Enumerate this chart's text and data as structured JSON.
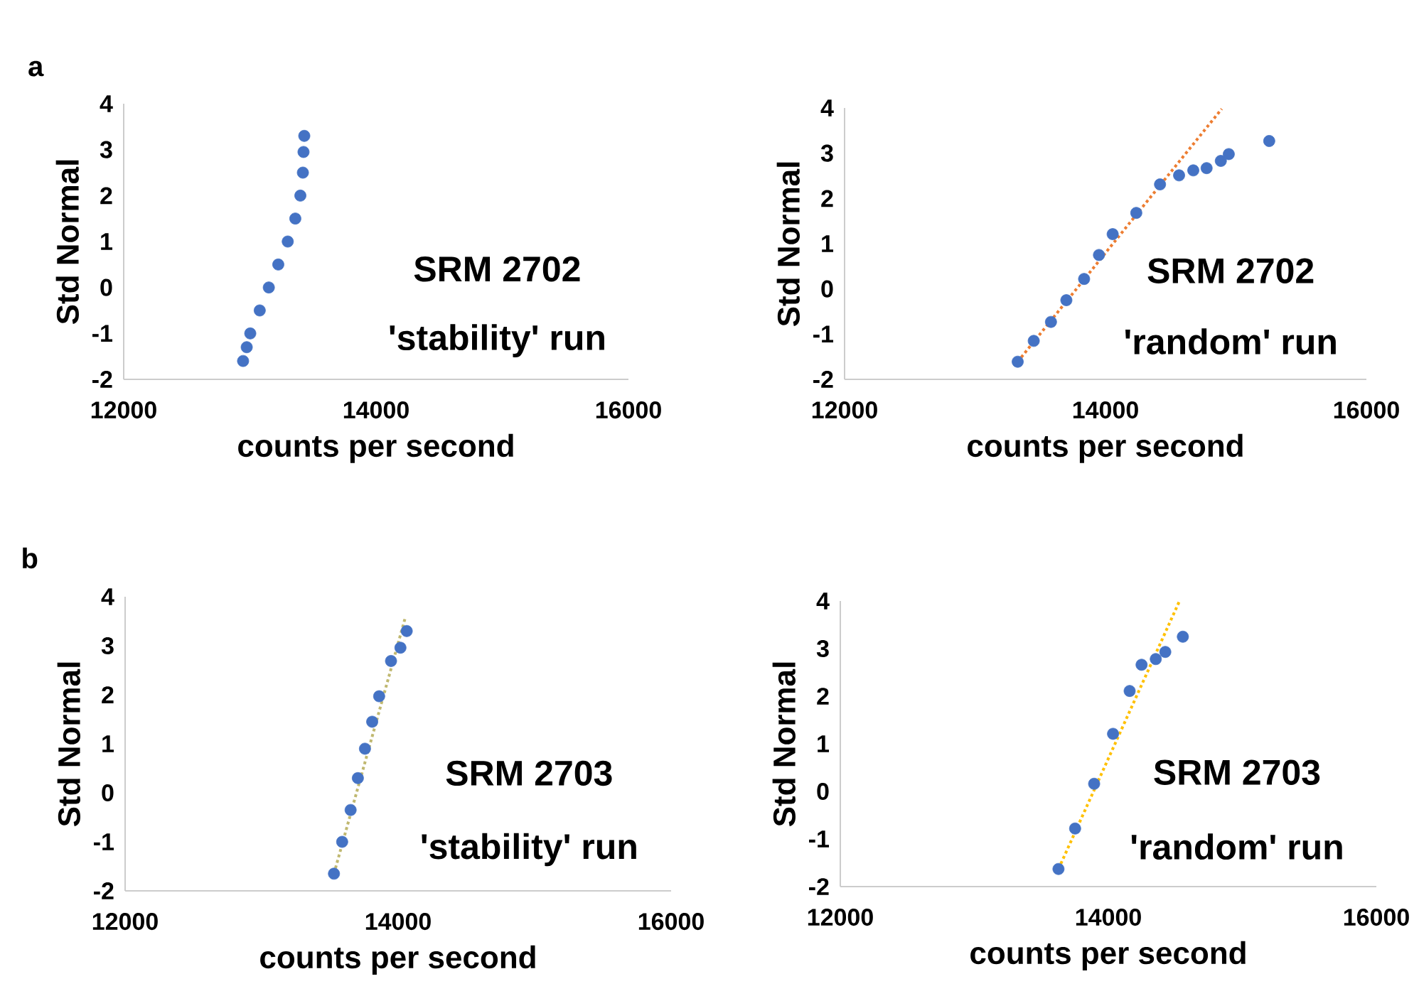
{
  "chart_data": [
    {
      "type": "scatter",
      "title": "a",
      "xlabel": "counts per second",
      "ylabel": "Std Normal",
      "xlim": [
        12000,
        16000
      ],
      "ylim": [
        -2,
        4
      ],
      "xticks": [
        12000,
        14000,
        16000
      ],
      "yticks": [
        -2,
        -1,
        0,
        1,
        2,
        3,
        4
      ],
      "grid": false,
      "annotations": [
        "SRM 2702",
        "'stability' run"
      ],
      "series": [
        {
          "type": "scatter",
          "marker": "circle",
          "color": "#4472c4",
          "x": [
            12946,
            12975,
            13003,
            13078,
            13150,
            13225,
            13300,
            13360,
            13400,
            13420,
            13425,
            13431
          ],
          "values": [
            -1.6,
            -1.3,
            -1.0,
            -0.5,
            0,
            0.5,
            1.0,
            1.5,
            2.0,
            2.5,
            2.95,
            3.3
          ]
        }
      ]
    },
    {
      "type": "scatter",
      "xlabel": "counts per second",
      "ylabel": "Std Normal",
      "xlim": [
        12000,
        16000
      ],
      "ylim": [
        -2,
        4
      ],
      "xticks": [
        12000,
        14000,
        16000
      ],
      "yticks": [
        -2,
        -1,
        0,
        1,
        2,
        3,
        4
      ],
      "grid": false,
      "annotations": [
        "SRM 2702",
        "'random' run"
      ],
      "series": [
        {
          "type": "scatter",
          "marker": "circle",
          "color": "#4472c4",
          "x": [
            13327,
            13450,
            13582,
            13700,
            13836,
            13950,
            14055,
            14236,
            14418,
            14564,
            14673,
            14775,
            14884,
            14945,
            15255
          ],
          "values": [
            -1.61,
            -1.15,
            -0.73,
            -0.25,
            0.22,
            0.75,
            1.21,
            1.68,
            2.31,
            2.51,
            2.62,
            2.67,
            2.83,
            2.98,
            3.27
          ]
        },
        {
          "type": "line",
          "color": "#ed7d31",
          "line_style": "dotted",
          "marker": "none",
          "x": [
            13327,
            14891
          ],
          "values": [
            -1.61,
            3.98
          ]
        }
      ]
    },
    {
      "type": "scatter",
      "title": "b",
      "xlabel": "counts per second",
      "ylabel": "Std Normal",
      "xlim": [
        12000,
        16000
      ],
      "ylim": [
        -2,
        4
      ],
      "xticks": [
        12000,
        14000,
        16000
      ],
      "yticks": [
        -2,
        -1,
        0,
        1,
        2,
        3,
        4
      ],
      "grid": false,
      "annotations": [
        "SRM 2703",
        "'stability' run"
      ],
      "series": [
        {
          "type": "scatter",
          "marker": "circle",
          "color": "#4472c4",
          "x": [
            13530,
            13590,
            13652,
            13705,
            13757,
            13810,
            13861,
            13948,
            14017,
            14063
          ],
          "values": [
            -1.65,
            -1.0,
            -0.35,
            0.3,
            0.9,
            1.45,
            1.97,
            2.69,
            2.96,
            3.3
          ]
        },
        {
          "type": "line",
          "color": "#c0b870",
          "line_style": "dotted",
          "marker": "none",
          "x": [
            13530,
            14052
          ],
          "values": [
            -1.65,
            3.57
          ]
        }
      ]
    },
    {
      "type": "scatter",
      "xlabel": "counts per second",
      "ylabel": "Std Normal",
      "xlim": [
        12000,
        16000
      ],
      "ylim": [
        -2,
        4
      ],
      "xticks": [
        12000,
        14000,
        16000
      ],
      "yticks": [
        -2,
        -1,
        0,
        1,
        2,
        3,
        4
      ],
      "grid": false,
      "annotations": [
        "SRM 2703",
        "'random' run"
      ],
      "series": [
        {
          "type": "scatter",
          "marker": "circle",
          "color": "#4472c4",
          "x": [
            13628,
            13752,
            13894,
            14035,
            14159,
            14248,
            14354,
            14425,
            14556
          ],
          "values": [
            -1.63,
            -0.78,
            0.16,
            1.21,
            2.11,
            2.66,
            2.78,
            2.93,
            3.25
          ]
        },
        {
          "type": "line",
          "color": "#ffc000",
          "line_style": "dotted",
          "marker": "none",
          "x": [
            13628,
            14531
          ],
          "values": [
            -1.63,
            4.0
          ]
        }
      ]
    }
  ]
}
